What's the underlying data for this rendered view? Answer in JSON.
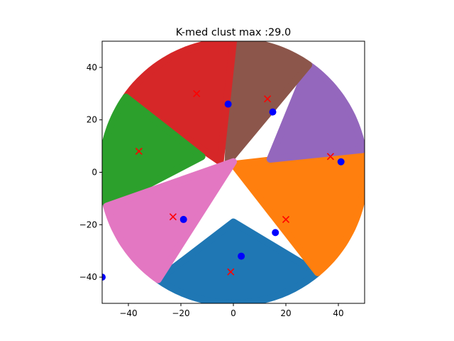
{
  "chart_data": {
    "type": "scatter",
    "title": "K-med clust max :29.0",
    "xlabel": "",
    "ylabel": "",
    "xlim": [
      -50,
      50
    ],
    "ylim": [
      -50,
      50
    ],
    "xticks": [
      -40,
      -20,
      0,
      20,
      40
    ],
    "yticks": [
      -40,
      -20,
      0,
      20,
      40
    ],
    "grid": false,
    "legend": "none",
    "disk": {
      "center": [
        0,
        0
      ],
      "radius": 50
    },
    "clusters": [
      {
        "color": "#1f77b4",
        "angle_start": 235,
        "angle_end": 310,
        "apex": [
          0,
          -19
        ]
      },
      {
        "color": "#ff7f0e",
        "angle_start": 310,
        "angle_end": 360,
        "apex": [
          0,
          3
        ],
        "boundary_angle": 10
      },
      {
        "color": "#9467bd",
        "angle_start": 10,
        "angle_end": 55,
        "apex": [
          14,
          5
        ]
      },
      {
        "color": "#8c564b",
        "angle_start": 55,
        "angle_end": 90,
        "apex": [
          -2,
          4
        ]
      },
      {
        "color": "#d62728",
        "angle_start": 90,
        "angle_end": 145,
        "apex": [
          -5,
          4
        ]
      },
      {
        "color": "#2ca02c",
        "angle_start": 145,
        "angle_end": 195,
        "apex": [
          -12,
          6
        ]
      },
      {
        "color": "#e377c2",
        "angle_start": 195,
        "angle_end": 235,
        "apex": [
          0,
          4
        ]
      }
    ],
    "centroids_x": [
      {
        "x": -14,
        "y": 30
      },
      {
        "x": 13,
        "y": 28
      },
      {
        "x": -36,
        "y": 8
      },
      {
        "x": 37,
        "y": 6
      },
      {
        "x": -23,
        "y": -17
      },
      {
        "x": 20,
        "y": -18
      },
      {
        "x": -1,
        "y": -38
      }
    ],
    "medoids": [
      {
        "x": -2,
        "y": 26
      },
      {
        "x": 15,
        "y": 23
      },
      {
        "x": 41,
        "y": 4
      },
      {
        "x": -19,
        "y": -18
      },
      {
        "x": 16,
        "y": -23
      },
      {
        "x": 3,
        "y": -32
      },
      {
        "x": -50,
        "y": -40
      }
    ],
    "colors": {
      "centroid": "#ff0000",
      "medoid": "#0000ff",
      "axis": "#000000"
    }
  }
}
